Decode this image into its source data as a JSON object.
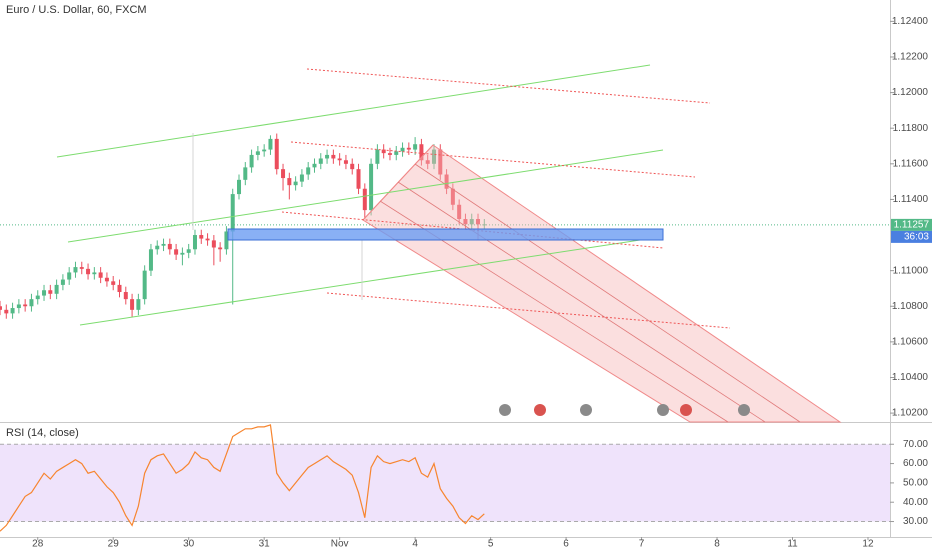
{
  "chart_data": [
    {
      "type": "candlestick",
      "title": "Euro / U.S. Dollar, 60, FXCM",
      "up_color": "#53b987",
      "down_color": "#eb4d5c",
      "x": [
        0,
        2,
        4,
        6,
        8,
        10,
        12,
        14,
        16,
        18,
        20,
        22,
        24,
        26,
        28,
        30,
        32,
        34,
        36,
        38,
        40,
        42,
        44,
        46,
        48,
        50,
        52,
        54,
        56,
        58,
        60,
        62,
        64,
        66,
        68,
        70,
        72,
        74,
        76,
        78,
        80,
        82,
        84,
        86,
        88,
        90,
        92,
        94,
        96,
        98,
        100,
        102,
        104,
        106,
        108,
        110,
        112,
        114,
        116,
        118,
        120,
        122,
        124,
        126,
        128,
        130,
        132,
        134,
        136,
        138,
        140,
        142,
        144,
        146,
        148,
        150,
        152,
        154
      ],
      "open": [
        1.108,
        1.1078,
        1.1076,
        1.1079,
        1.1081,
        1.108,
        1.1084,
        1.1086,
        1.1089,
        1.1087,
        1.1092,
        1.1095,
        1.1099,
        1.1102,
        1.1101,
        1.1098,
        1.1099,
        1.1096,
        1.1094,
        1.1092,
        1.1088,
        1.1084,
        1.1078,
        1.1084,
        1.11,
        1.1112,
        1.1114,
        1.1115,
        1.1112,
        1.1109,
        1.111,
        1.1112,
        1.112,
        1.1118,
        1.1117,
        1.1113,
        1.1112,
        1.1122,
        1.1143,
        1.1151,
        1.1158,
        1.1165,
        1.1167,
        1.1168,
        1.1174,
        1.1157,
        1.1152,
        1.1148,
        1.115,
        1.1154,
        1.1158,
        1.116,
        1.1163,
        1.1165,
        1.1163,
        1.1162,
        1.116,
        1.1157,
        1.1146,
        1.1134,
        1.116,
        1.1168,
        1.1166,
        1.1165,
        1.1167,
        1.1169,
        1.1168,
        1.1171,
        1.1162,
        1.116,
        1.1168,
        1.1154,
        1.1146,
        1.1137,
        1.1129,
        1.1126,
        1.1129,
        1.1126
      ],
      "high": [
        1.1083,
        1.1081,
        1.1082,
        1.1084,
        1.1084,
        1.1087,
        1.1089,
        1.1092,
        1.1092,
        1.1095,
        1.1098,
        1.1102,
        1.1105,
        1.1105,
        1.1104,
        1.1102,
        1.1102,
        1.1099,
        1.1097,
        1.1095,
        1.1091,
        1.1087,
        1.1087,
        1.1103,
        1.1115,
        1.1117,
        1.1118,
        1.1118,
        1.1115,
        1.1113,
        1.1115,
        1.1123,
        1.1123,
        1.1121,
        1.112,
        1.1116,
        1.1125,
        1.1146,
        1.1154,
        1.1161,
        1.1168,
        1.117,
        1.1171,
        1.1176,
        1.1177,
        1.116,
        1.1155,
        1.1153,
        1.1157,
        1.1161,
        1.1163,
        1.1166,
        1.1168,
        1.1168,
        1.1166,
        1.1165,
        1.1163,
        1.116,
        1.1149,
        1.1163,
        1.1171,
        1.1171,
        1.1169,
        1.117,
        1.1172,
        1.1172,
        1.1175,
        1.1174,
        1.1165,
        1.1171,
        1.1171,
        1.1157,
        1.1149,
        1.114,
        1.1132,
        1.1132,
        1.1132,
        1.1129
      ],
      "low": [
        1.1075,
        1.1073,
        1.1073,
        1.1076,
        1.1077,
        1.1077,
        1.1081,
        1.1083,
        1.1084,
        1.1084,
        1.1089,
        1.1092,
        1.1096,
        1.1098,
        1.1095,
        1.1095,
        1.1093,
        1.1091,
        1.1089,
        1.1085,
        1.1081,
        1.1074,
        1.1075,
        1.1081,
        1.1097,
        1.1109,
        1.1111,
        1.1109,
        1.1106,
        1.1103,
        1.1107,
        1.1109,
        1.1115,
        1.1114,
        1.1103,
        1.1105,
        1.1109,
        1.1081,
        1.114,
        1.1148,
        1.1155,
        1.1162,
        1.1164,
        1.1165,
        1.1154,
        1.1145,
        1.114,
        1.1145,
        1.1147,
        1.1151,
        1.1155,
        1.1157,
        1.116,
        1.116,
        1.1159,
        1.1157,
        1.1154,
        1.1143,
        1.1129,
        1.1131,
        1.1157,
        1.1163,
        1.1162,
        1.1162,
        1.1164,
        1.1165,
        1.1165,
        1.1159,
        1.1157,
        1.1157,
        1.1151,
        1.1143,
        1.1134,
        1.1126,
        1.1123,
        1.1123,
        1.1117,
        1.1123
      ],
      "close": [
        1.1078,
        1.1076,
        1.1079,
        1.1081,
        1.108,
        1.1084,
        1.1086,
        1.1089,
        1.1087,
        1.1092,
        1.1095,
        1.1099,
        1.1102,
        1.1101,
        1.1098,
        1.1099,
        1.1096,
        1.1094,
        1.1092,
        1.1088,
        1.1084,
        1.1078,
        1.1084,
        1.11,
        1.1112,
        1.1114,
        1.1115,
        1.1112,
        1.1109,
        1.111,
        1.1112,
        1.112,
        1.1118,
        1.1117,
        1.1113,
        1.1112,
        1.1122,
        1.1143,
        1.1151,
        1.1158,
        1.1165,
        1.1167,
        1.1168,
        1.1174,
        1.1157,
        1.1152,
        1.1148,
        1.115,
        1.1154,
        1.1158,
        1.116,
        1.1163,
        1.1165,
        1.1163,
        1.1162,
        1.116,
        1.1157,
        1.1146,
        1.1134,
        1.116,
        1.1168,
        1.1166,
        1.1165,
        1.1167,
        1.1169,
        1.1168,
        1.1171,
        1.1162,
        1.116,
        1.1168,
        1.1154,
        1.1146,
        1.1137,
        1.1129,
        1.1126,
        1.1129,
        1.1126,
        1.1126
      ],
      "xlim": [
        0,
        283
      ],
      "ylim": [
        1.1015,
        1.1252
      ],
      "yticks": [
        {
          "value": 1.124,
          "label": "1.12400"
        },
        {
          "value": 1.122,
          "label": "1.12200"
        },
        {
          "value": 1.12,
          "label": "1.12000"
        },
        {
          "value": 1.118,
          "label": "1.11800"
        },
        {
          "value": 1.116,
          "label": "1.11600"
        },
        {
          "value": 1.114,
          "label": "1.11400"
        },
        {
          "value": 1.11,
          "label": "1.11000"
        },
        {
          "value": 1.108,
          "label": "1.10800"
        },
        {
          "value": 1.106,
          "label": "1.10600"
        },
        {
          "value": 1.104,
          "label": "1.10400"
        },
        {
          "value": 1.102,
          "label": "1.10200"
        }
      ],
      "last_price": 1.11257,
      "countdown": "36:03"
    },
    {
      "type": "line",
      "title": "RSI (14, close)",
      "color": "#f7852f",
      "band_color": "#efe3fb",
      "x": [
        0,
        2,
        4,
        6,
        8,
        10,
        12,
        14,
        16,
        18,
        20,
        22,
        24,
        26,
        28,
        30,
        32,
        34,
        36,
        38,
        40,
        42,
        44,
        46,
        48,
        50,
        52,
        54,
        56,
        58,
        60,
        62,
        64,
        66,
        68,
        70,
        72,
        74,
        76,
        78,
        80,
        82,
        84,
        86,
        88,
        90,
        92,
        94,
        96,
        98,
        100,
        102,
        104,
        106,
        108,
        110,
        112,
        114,
        116,
        118,
        120,
        122,
        124,
        126,
        128,
        130,
        132,
        134,
        136,
        138,
        140,
        142,
        144,
        146,
        148,
        150,
        152,
        154
      ],
      "values": [
        25,
        28,
        33,
        38,
        43,
        45,
        50,
        55,
        52,
        56,
        58,
        60,
        62,
        60,
        55,
        56,
        52,
        48,
        45,
        40,
        33,
        28,
        38,
        55,
        62,
        64,
        65,
        60,
        55,
        57,
        60,
        66,
        63,
        62,
        58,
        56,
        65,
        74,
        76,
        78,
        78,
        79,
        79,
        80,
        55,
        50,
        46,
        50,
        54,
        58,
        60,
        62,
        64,
        61,
        59,
        57,
        54,
        45,
        32,
        58,
        64,
        61,
        60,
        61,
        62,
        61,
        63,
        55,
        53,
        60,
        47,
        42,
        38,
        32,
        29,
        33,
        31,
        34
      ],
      "xlim": [
        0,
        283
      ],
      "ylim": [
        22,
        81
      ],
      "yticks": [
        {
          "value": 70,
          "label": "70.00"
        },
        {
          "value": 60,
          "label": "60.00"
        },
        {
          "value": 50,
          "label": "50.00"
        },
        {
          "value": 40,
          "label": "40.00"
        },
        {
          "value": 30,
          "label": "30.00"
        }
      ],
      "band": [
        30,
        70
      ],
      "xticks": [
        {
          "value": 12,
          "label": "28"
        },
        {
          "value": 36,
          "label": "29"
        },
        {
          "value": 60,
          "label": "30"
        },
        {
          "value": 84,
          "label": "31"
        },
        {
          "value": 108,
          "label": "Nov"
        },
        {
          "value": 132,
          "label": "4"
        },
        {
          "value": 156,
          "label": "5"
        },
        {
          "value": 180,
          "label": "6"
        },
        {
          "value": 204,
          "label": "7"
        },
        {
          "value": 228,
          "label": "8"
        },
        {
          "value": 252,
          "label": "11"
        },
        {
          "value": 276,
          "label": "12"
        }
      ]
    }
  ]
}
